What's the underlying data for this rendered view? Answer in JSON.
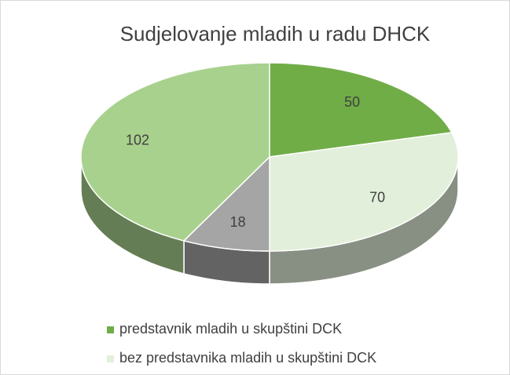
{
  "chart_data": {
    "type": "pie",
    "title": "Sudjelovanje mladih u radu DHCK",
    "categories": [
      "predstavnik mladih u skupštini DCK",
      "bez predstavnika mladih u skupštini DCK",
      null,
      null
    ],
    "values": [
      50,
      70,
      18,
      102
    ],
    "colors": [
      "#70ad47",
      "#e2efda",
      "#a5a5a5",
      "#a9d18e"
    ],
    "legend": "bottom"
  }
}
